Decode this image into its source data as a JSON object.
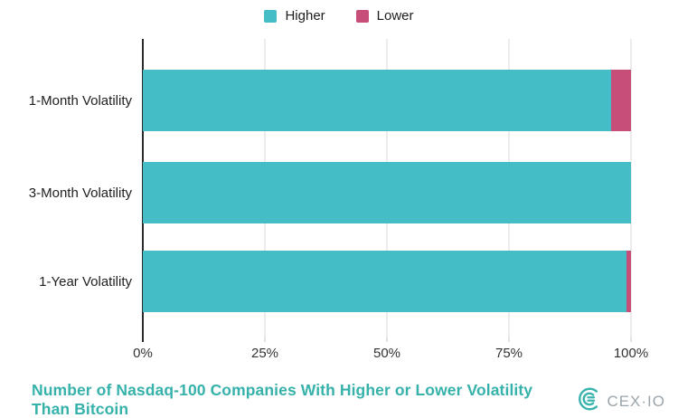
{
  "legend": {
    "items": [
      {
        "label": "Higher",
        "color": "#45bdc6"
      },
      {
        "label": "Lower",
        "color": "#c64e78"
      }
    ]
  },
  "chart_data": {
    "type": "bar",
    "orientation": "horizontal",
    "stacked": true,
    "title": "Number of Nasdaq-100 Companies With Higher or Lower Volatility Than Bitcoin",
    "categories": [
      "1-Month Volatility",
      "3-Month Volatility",
      "1-Year Volatility"
    ],
    "series": [
      {
        "name": "Higher",
        "color": "#45bdc6",
        "values": [
          96,
          100,
          99
        ]
      },
      {
        "name": "Lower",
        "color": "#c64e78",
        "values": [
          4,
          0,
          1
        ]
      }
    ],
    "values_unit": "percent",
    "xlim": [
      0,
      100
    ],
    "xticks": [
      0,
      25,
      50,
      75,
      100
    ],
    "xticklabels": [
      "0%",
      "25%",
      "50%",
      "75%",
      "100%"
    ],
    "legend_position": "top",
    "grid": "vertical"
  },
  "footer": {
    "title_lines": [
      "Number of Nasdaq-100 Companies With Higher or Lower Volatility",
      "Than Bitcoin"
    ],
    "title_color": "#36b2ab"
  },
  "logo": {
    "wordmark": "CEX·IO",
    "icon_color": "#3bb4ae"
  }
}
